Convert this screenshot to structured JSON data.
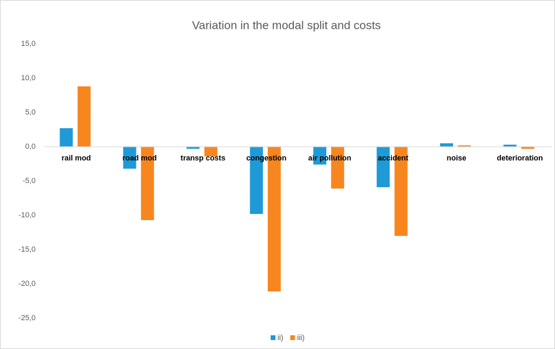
{
  "chart_data": {
    "type": "bar",
    "title": "Variation in the modal split and costs",
    "categories": [
      "rail mod",
      "road mod",
      "transp costs",
      "congestion",
      "air pollution",
      "accident",
      "noise",
      "deterioration"
    ],
    "series": [
      {
        "name": "ii)",
        "color": "#1f9ad6",
        "values": [
          2.7,
          -3.2,
          -0.3,
          -9.8,
          -2.6,
          -5.9,
          0.5,
          0.3
        ]
      },
      {
        "name": "iii)",
        "color": "#f7861f",
        "values": [
          8.8,
          -10.7,
          -1.4,
          -21.1,
          -6.1,
          -13.0,
          0.2,
          -0.3
        ]
      }
    ],
    "ylim": [
      -25,
      15
    ],
    "yticks": [
      {
        "value": -25,
        "label": "-25,0"
      },
      {
        "value": -20,
        "label": "-20,0"
      },
      {
        "value": -15,
        "label": "-15,0"
      },
      {
        "value": -10,
        "label": "-10,0"
      },
      {
        "value": -5,
        "label": "-5,0"
      },
      {
        "value": 0,
        "label": "0,0"
      },
      {
        "value": 5,
        "label": "5,0"
      },
      {
        "value": 10,
        "label": "10,0"
      },
      {
        "value": 15,
        "label": "15,0"
      }
    ],
    "grid": false,
    "legend": "bottom"
  }
}
